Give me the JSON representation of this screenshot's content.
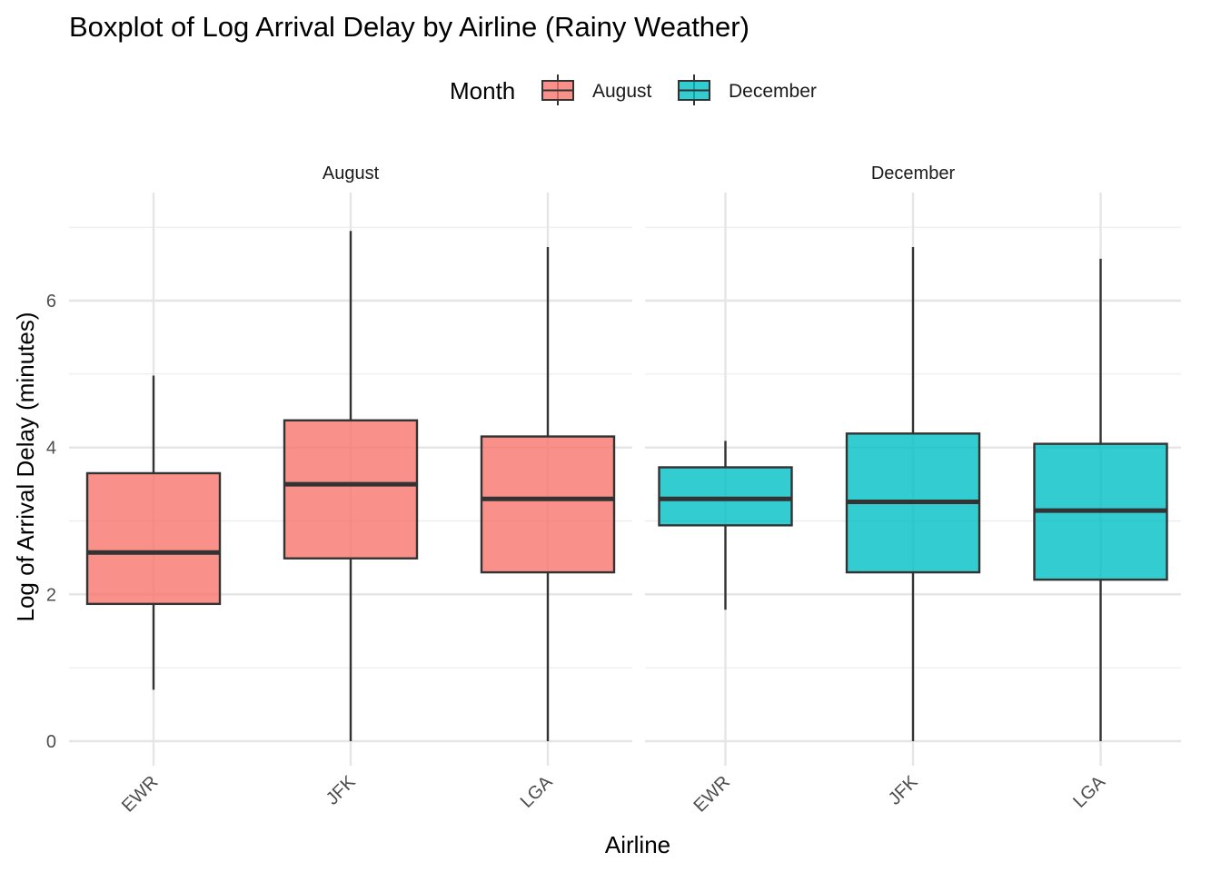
{
  "chart_data": {
    "type": "boxplot",
    "title": "Boxplot of Log Arrival Delay by Airline (Rainy Weather)",
    "xlabel": "Airline",
    "ylabel": "Log of Arrival Delay (minutes)",
    "ylim": [
      -0.35,
      7.5
    ],
    "yticks": [
      0,
      2,
      4,
      6
    ],
    "categories": [
      "EWR",
      "JFK",
      "LGA"
    ],
    "legend": {
      "title": "Month",
      "placement": "top",
      "entries": [
        {
          "label": "August",
          "color": "#F8766D"
        },
        {
          "label": "December",
          "color": "#00BFC4"
        }
      ]
    },
    "facets": [
      {
        "label": "August",
        "color": "#F8766D",
        "boxes": [
          {
            "category": "EWR",
            "min": 0.7,
            "q1": 1.87,
            "median": 2.57,
            "q3": 3.65,
            "max": 4.98
          },
          {
            "category": "JFK",
            "min": 0.0,
            "q1": 2.49,
            "median": 3.5,
            "q3": 4.37,
            "max": 6.95
          },
          {
            "category": "LGA",
            "min": 0.0,
            "q1": 2.3,
            "median": 3.3,
            "q3": 4.15,
            "max": 6.73
          }
        ]
      },
      {
        "label": "December",
        "color": "#00BFC4",
        "boxes": [
          {
            "category": "EWR",
            "min": 1.79,
            "q1": 2.94,
            "median": 3.3,
            "q3": 3.73,
            "max": 4.09
          },
          {
            "category": "JFK",
            "min": 0.0,
            "q1": 2.3,
            "median": 3.26,
            "q3": 4.19,
            "max": 6.73
          },
          {
            "category": "LGA",
            "min": 0.0,
            "q1": 2.2,
            "median": 3.14,
            "q3": 4.05,
            "max": 6.57
          }
        ]
      }
    ]
  }
}
